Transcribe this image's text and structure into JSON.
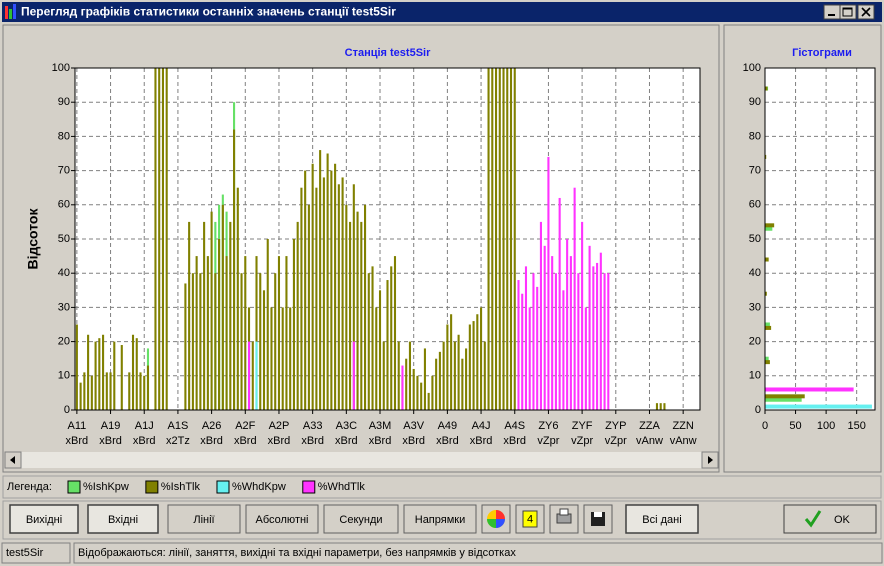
{
  "window": {
    "title": "Перегляд графіків статистики останніх значень станції test5Sir"
  },
  "chart_data": [
    {
      "type": "bar",
      "title": "Станція test5Sir",
      "ylabel": "Відсоток",
      "ylim": [
        0,
        100
      ],
      "yticks": [
        0,
        10,
        20,
        30,
        40,
        50,
        60,
        70,
        80,
        90,
        100
      ],
      "grid": true,
      "categories": [
        "A11 xBrd",
        null,
        null,
        null,
        null,
        null,
        null,
        null,
        null,
        "A19 xBrd",
        null,
        null,
        null,
        null,
        null,
        null,
        null,
        null,
        "A1J xBrd",
        null,
        null,
        null,
        null,
        null,
        null,
        null,
        null,
        "A1S x2Tz",
        null,
        null,
        null,
        null,
        null,
        null,
        null,
        null,
        "A26 xBrd",
        null,
        null,
        null,
        null,
        null,
        null,
        null,
        null,
        "A2F xBrd",
        null,
        null,
        null,
        null,
        null,
        null,
        null,
        null,
        "A2P xBrd",
        null,
        null,
        null,
        null,
        null,
        null,
        null,
        null,
        "A33 xBrd",
        null,
        null,
        null,
        null,
        null,
        null,
        null,
        null,
        "A3C xBrd",
        null,
        null,
        null,
        null,
        null,
        null,
        null,
        null,
        "A3M xBrd",
        null,
        null,
        null,
        null,
        null,
        null,
        null,
        null,
        "A3V xBrd",
        null,
        null,
        null,
        null,
        null,
        null,
        null,
        null,
        "A49 xBrd",
        null,
        null,
        null,
        null,
        null,
        null,
        null,
        null,
        "A4J xBrd",
        null,
        null,
        null,
        null,
        null,
        null,
        null,
        null,
        "A4S xBrd",
        null,
        null,
        null,
        null,
        null,
        null,
        null,
        null,
        "ZY6 vZpr",
        null,
        null,
        null,
        null,
        null,
        null,
        null,
        null,
        "ZYF vZpr",
        null,
        null,
        null,
        null,
        null,
        null,
        null,
        null,
        "ZYP vZpr",
        null,
        null,
        null,
        null,
        null,
        null,
        null,
        null,
        "ZZA vAnw",
        null,
        null,
        null,
        null,
        null,
        null,
        null,
        null,
        "ZZN vAnw",
        null,
        null,
        null,
        null
      ],
      "series": [
        {
          "name": "%IshKpw",
          "color": "#66e066",
          "values": [
            null,
            null,
            null,
            null,
            null,
            null,
            null,
            null,
            null,
            null,
            null,
            null,
            null,
            null,
            null,
            null,
            null,
            null,
            null,
            18,
            null,
            null,
            null,
            null,
            null,
            null,
            null,
            null,
            null,
            null,
            null,
            null,
            null,
            null,
            null,
            null,
            null,
            55,
            60,
            63,
            58,
            null,
            90,
            null,
            null,
            null,
            null,
            null,
            null,
            null,
            null,
            null,
            null,
            null,
            null,
            null,
            null,
            null,
            null,
            null,
            null,
            null,
            null,
            null,
            null,
            null,
            null,
            null,
            null,
            null,
            null,
            null,
            null,
            null,
            null,
            null,
            null,
            null,
            null,
            null,
            null,
            null,
            null,
            null,
            null,
            null,
            null,
            null,
            null,
            null,
            null,
            null,
            null,
            null,
            null,
            null,
            null,
            null,
            null,
            null,
            null,
            null,
            null,
            null,
            null,
            null,
            null,
            null,
            null,
            null,
            null,
            null,
            null,
            null,
            null,
            null,
            null,
            null,
            null,
            null,
            null,
            null,
            null,
            null,
            null,
            null,
            null,
            null,
            null,
            null,
            null,
            null,
            null,
            null,
            null,
            null,
            null,
            null,
            null,
            null,
            null,
            null,
            null,
            null,
            null,
            null,
            null,
            null,
            null,
            null,
            null,
            null,
            null,
            null,
            null,
            null,
            null,
            null,
            null,
            null,
            null,
            null,
            null,
            null,
            null,
            null,
            null
          ]
        },
        {
          "name": "%IshTlk",
          "color": "#808000",
          "values": [
            25,
            8,
            11,
            22,
            10,
            20,
            21,
            22,
            11,
            11,
            20,
            0,
            19,
            0,
            11,
            22,
            21,
            11,
            10,
            13,
            0,
            100,
            100,
            100,
            100,
            0,
            0,
            0,
            0,
            37,
            55,
            40,
            45,
            40,
            55,
            45,
            58,
            40,
            50,
            60,
            45,
            55,
            82,
            65,
            40,
            45,
            30,
            20,
            45,
            40,
            35,
            50,
            30,
            40,
            45,
            30,
            45,
            30,
            50,
            55,
            65,
            70,
            60,
            72,
            65,
            76,
            68,
            75,
            70,
            72,
            66,
            68,
            60,
            55,
            66,
            58,
            55,
            60,
            40,
            42,
            30,
            35,
            20,
            38,
            42,
            45,
            20,
            10,
            15,
            20,
            12,
            10,
            8,
            18,
            5,
            10,
            15,
            17,
            20,
            25,
            28,
            20,
            22,
            15,
            18,
            25,
            26,
            28,
            30,
            20,
            100,
            100,
            100,
            100,
            100,
            100,
            100,
            100,
            null,
            null,
            null,
            null,
            null,
            null,
            null,
            null,
            null,
            null,
            null,
            null,
            null,
            null,
            null,
            null,
            null,
            null,
            null,
            null,
            null,
            null,
            null,
            null,
            null,
            null,
            null,
            null,
            null,
            null,
            null,
            null,
            null,
            null,
            null,
            0,
            0,
            2,
            2,
            2,
            0,
            0,
            0,
            0,
            0,
            0,
            0,
            0,
            0
          ]
        },
        {
          "name": "%WhdKpw",
          "color": "#66f0f0",
          "values": [
            null,
            null,
            null,
            null,
            null,
            null,
            null,
            null,
            null,
            null,
            null,
            null,
            null,
            null,
            null,
            null,
            null,
            null,
            null,
            null,
            null,
            null,
            null,
            null,
            null,
            null,
            null,
            null,
            null,
            null,
            null,
            null,
            null,
            null,
            null,
            null,
            null,
            null,
            null,
            null,
            null,
            null,
            null,
            null,
            null,
            null,
            null,
            null,
            20,
            null,
            null,
            null,
            null,
            null,
            null,
            null,
            null,
            null,
            null,
            null,
            null,
            null,
            null,
            null,
            null,
            null,
            null,
            null,
            null,
            null,
            null,
            null,
            null,
            null,
            null,
            null,
            null,
            null,
            null,
            null,
            null,
            null,
            null,
            null,
            null,
            null,
            null,
            null,
            null,
            null,
            null,
            null,
            null,
            null,
            null,
            null,
            null,
            null,
            null,
            null,
            null,
            null,
            null,
            null,
            null,
            null,
            null,
            null,
            null,
            null,
            null,
            null,
            null,
            null,
            null,
            null,
            null,
            null,
            null,
            null,
            null,
            null,
            null,
            null,
            null,
            null,
            null,
            null,
            null,
            null,
            null,
            null,
            null,
            null,
            null,
            null,
            null,
            null,
            null,
            null,
            null,
            null,
            null,
            null,
            null,
            null,
            null,
            null,
            null,
            null,
            null,
            null,
            null,
            null,
            null,
            null,
            null,
            null,
            null,
            null,
            null,
            null,
            null,
            null,
            null,
            null,
            null
          ]
        },
        {
          "name": "%WhdTlk",
          "color": "#ff33ff",
          "values": [
            null,
            null,
            null,
            null,
            null,
            null,
            null,
            null,
            null,
            null,
            null,
            null,
            null,
            null,
            null,
            null,
            null,
            null,
            null,
            null,
            null,
            null,
            null,
            null,
            null,
            null,
            null,
            null,
            null,
            null,
            null,
            null,
            null,
            null,
            null,
            null,
            null,
            null,
            null,
            null,
            null,
            null,
            null,
            null,
            null,
            null,
            20,
            null,
            null,
            null,
            null,
            null,
            null,
            null,
            null,
            null,
            null,
            null,
            null,
            null,
            null,
            null,
            null,
            null,
            null,
            null,
            null,
            null,
            null,
            null,
            null,
            null,
            null,
            null,
            20,
            null,
            null,
            null,
            null,
            null,
            null,
            null,
            null,
            null,
            null,
            null,
            null,
            13,
            null,
            null,
            null,
            null,
            null,
            null,
            null,
            null,
            null,
            null,
            null,
            null,
            null,
            null,
            null,
            null,
            null,
            null,
            null,
            null,
            null,
            null,
            null,
            null,
            null,
            null,
            null,
            null,
            null,
            null,
            38,
            34,
            42,
            30,
            40,
            36,
            55,
            48,
            74,
            45,
            40,
            62,
            35,
            50,
            45,
            65,
            40,
            55,
            30,
            48,
            42,
            43,
            46,
            40,
            40,
            null,
            null,
            null,
            null,
            null,
            null,
            null,
            null,
            null,
            null,
            null,
            null,
            null,
            null,
            null,
            null,
            null,
            null,
            null,
            null,
            null,
            null,
            null,
            null
          ]
        }
      ]
    },
    {
      "type": "barh",
      "title": "Гістограми",
      "ylim": [
        0,
        100
      ],
      "yticks": [
        0,
        10,
        20,
        30,
        40,
        50,
        60,
        70,
        80,
        90,
        100
      ],
      "xlim": [
        0,
        180
      ],
      "xticks": [
        0,
        50,
        100,
        150
      ],
      "grid": true,
      "series": [
        {
          "color": "#66e066",
          "y": [
            3,
            15,
            25,
            53,
            94
          ],
          "values": [
            60,
            6,
            8,
            12,
            5
          ]
        },
        {
          "color": "#808000",
          "y": [
            4,
            14,
            24,
            34,
            44,
            54,
            74,
            94
          ],
          "values": [
            65,
            8,
            10,
            3,
            6,
            15,
            2,
            4
          ]
        },
        {
          "color": "#66f0f0",
          "y": [
            1
          ],
          "values": [
            175
          ]
        },
        {
          "color": "#ff33ff",
          "y": [
            6
          ],
          "values": [
            145
          ]
        }
      ]
    }
  ],
  "legend": {
    "label": "Легенда:"
  },
  "buttons": [
    "Вихідні",
    "Вхідні",
    "Лінії",
    "Абсолютні",
    "Секунди",
    "Напрямки",
    "4",
    "Всі дані",
    "OK"
  ],
  "status": [
    "test5Sir",
    "Відображаються: лінії, заняття, вихідні та вхідні параметри, без напрямків у відсотках"
  ]
}
